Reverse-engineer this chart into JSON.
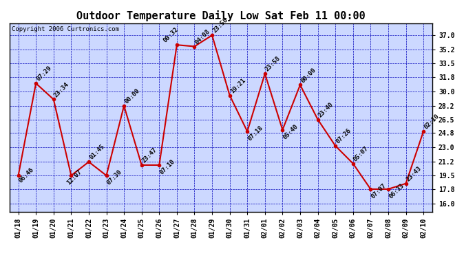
{
  "title": "Outdoor Temperature Daily Low Sat Feb 11 00:00",
  "copyright": "Copyright 2006 Curtronics.com",
  "fig_bg_color": "#ffffff",
  "plot_bg_color": "#ccd8ff",
  "line_color": "#cc0000",
  "grid_color": "#0000bb",
  "x_labels": [
    "01/18",
    "01/19",
    "01/20",
    "01/21",
    "01/22",
    "01/23",
    "01/24",
    "01/25",
    "01/26",
    "01/27",
    "01/28",
    "01/29",
    "01/30",
    "01/31",
    "02/01",
    "02/02",
    "02/03",
    "02/04",
    "02/05",
    "02/06",
    "02/07",
    "02/08",
    "02/09",
    "02/10"
  ],
  "y_values": [
    19.5,
    31.0,
    29.0,
    19.5,
    21.2,
    19.5,
    28.2,
    20.8,
    20.8,
    35.8,
    35.6,
    37.0,
    29.5,
    25.0,
    32.2,
    25.2,
    30.8,
    26.5,
    23.2,
    21.0,
    17.8,
    17.8,
    18.5,
    25.0
  ],
  "point_labels": [
    "06:46",
    "07:29",
    "23:34",
    "12:07",
    "01:45",
    "07:30",
    "00:00",
    "23:47",
    "07:10",
    "00:32",
    "04:08",
    "23:56",
    "19:21",
    "07:18",
    "23:58",
    "05:40",
    "00:00",
    "23:40",
    "07:26",
    "05:07",
    "07:07",
    "06:33",
    "23:43",
    "02:10"
  ],
  "ylim": [
    15.0,
    38.5
  ],
  "yticks": [
    16.0,
    17.8,
    19.5,
    21.2,
    23.0,
    24.8,
    26.5,
    28.2,
    30.0,
    31.8,
    33.5,
    35.2,
    37.0
  ],
  "title_fontsize": 11,
  "label_fontsize": 6.5,
  "tick_fontsize": 7,
  "copy_fontsize": 6.5
}
